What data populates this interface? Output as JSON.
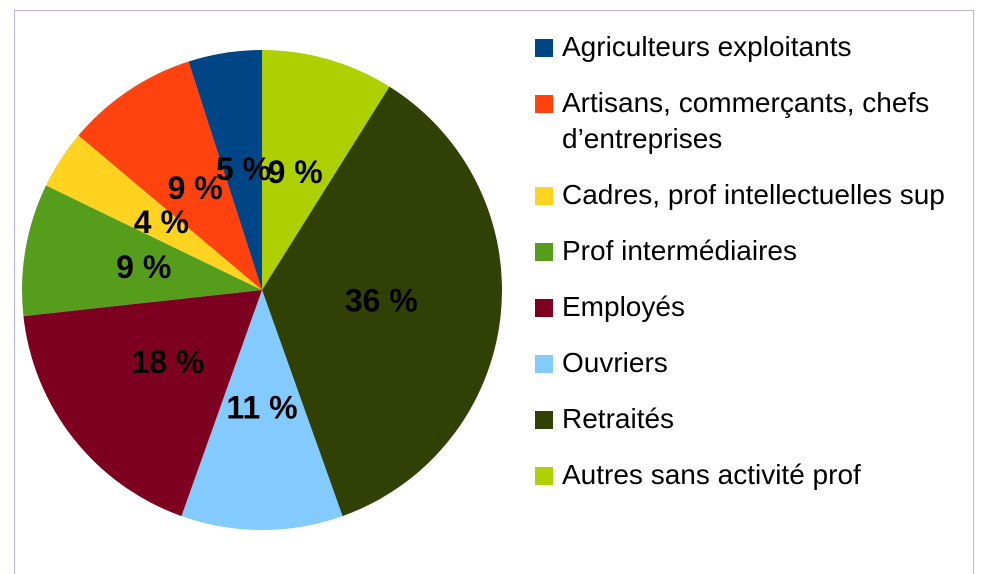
{
  "chart_data": {
    "type": "pie",
    "categories": [
      "Agriculteurs exploitants",
      "Artisans, commerçants, chefs d’entreprises",
      "Cadres, prof intellectuelles sup",
      "Prof intermédiaires",
      "Employés",
      "Ouvriers",
      "Retraités",
      "Autres sans activité prof"
    ],
    "values": [
      5,
      9,
      4,
      9,
      18,
      11,
      36,
      9
    ],
    "value_labels": [
      "5 %",
      "9 %",
      "4 %",
      "9 %",
      "18 %",
      "11 %",
      "36 %",
      "9 %"
    ],
    "colors": [
      "#004586",
      "#ff420e",
      "#ffd320",
      "#579d1c",
      "#7e0021",
      "#83caff",
      "#314004",
      "#aecf00"
    ],
    "legend": "right"
  }
}
